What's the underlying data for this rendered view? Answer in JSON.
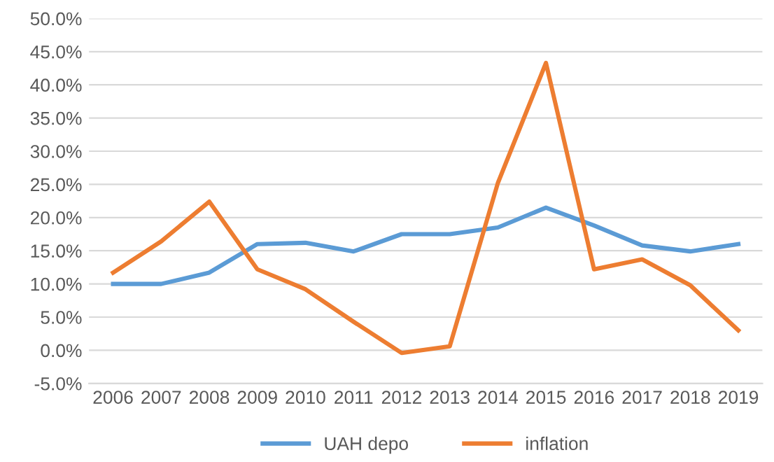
{
  "chart_data": {
    "type": "line",
    "categories": [
      "2006",
      "2007",
      "2008",
      "2009",
      "2010",
      "2011",
      "2012",
      "2013",
      "2014",
      "2015",
      "2016",
      "2017",
      "2018",
      "2019"
    ],
    "series": [
      {
        "name": "UAH depo",
        "color": "#5b9bd5",
        "values": [
          10.0,
          10.0,
          11.7,
          16.0,
          16.2,
          14.9,
          17.5,
          17.5,
          18.5,
          21.5,
          18.8,
          15.8,
          14.9,
          16.0
        ]
      },
      {
        "name": "inflation",
        "color": "#ed7d31",
        "values": [
          11.7,
          16.4,
          22.4,
          12.2,
          9.2,
          4.3,
          -0.4,
          0.6,
          25.2,
          43.3,
          12.2,
          13.7,
          9.8,
          3.0
        ]
      }
    ],
    "ylim": [
      -5,
      50
    ],
    "yticks": [
      {
        "value": -5,
        "label": "-5.0%"
      },
      {
        "value": 0,
        "label": "0.0%"
      },
      {
        "value": 5,
        "label": "5.0%"
      },
      {
        "value": 10,
        "label": "10.0%"
      },
      {
        "value": 15,
        "label": "15.0%"
      },
      {
        "value": 20,
        "label": "20.0%"
      },
      {
        "value": 25,
        "label": "25.0%"
      },
      {
        "value": 30,
        "label": "30.0%"
      },
      {
        "value": 35,
        "label": "35.0%"
      },
      {
        "value": 40,
        "label": "40.0%"
      },
      {
        "value": 45,
        "label": "45.0%"
      },
      {
        "value": 50,
        "label": "50.0%"
      }
    ],
    "grid": "y",
    "legend": "bottom",
    "marker": "none",
    "line_style": "solid"
  }
}
